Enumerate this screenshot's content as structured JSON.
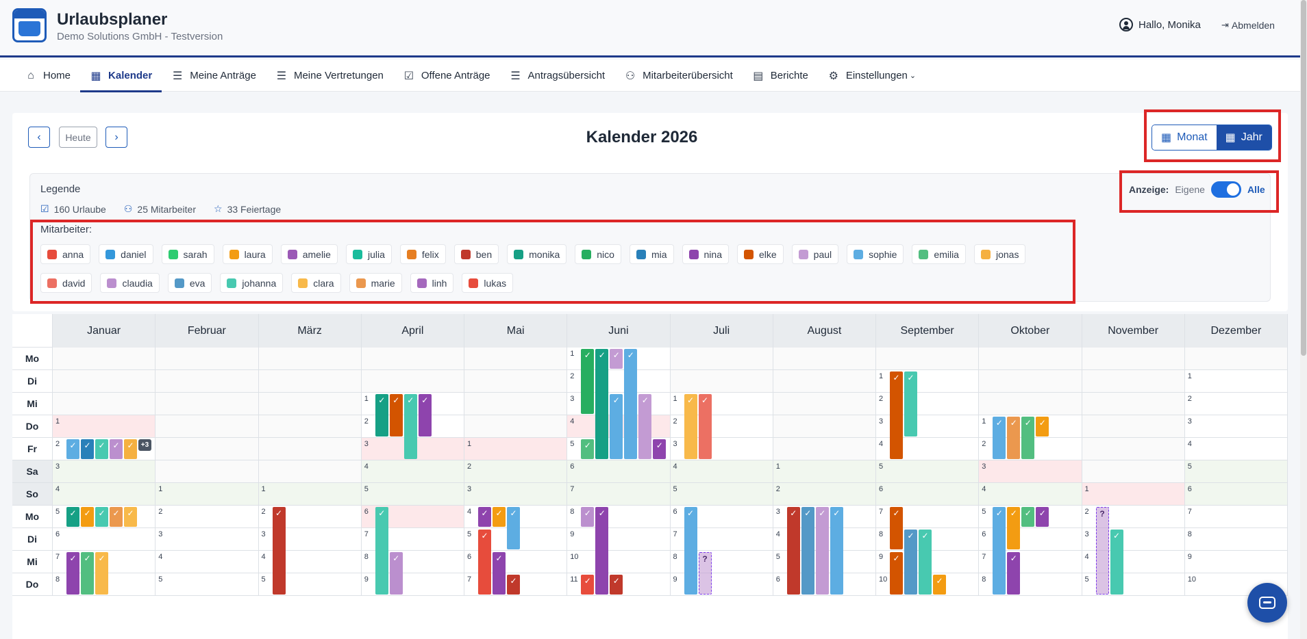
{
  "header": {
    "app_title": "Urlaubsplaner",
    "app_subtitle": "Demo Solutions GmbH - Testversion",
    "greeting": "Hallo, Monika",
    "logout_label": "Abmelden"
  },
  "nav": [
    {
      "label": "Home",
      "icon": "home-icon",
      "glyph": "⌂"
    },
    {
      "label": "Kalender",
      "icon": "calendar-icon",
      "glyph": "▦",
      "active": true
    },
    {
      "label": "Meine Anträge",
      "icon": "user-list-icon",
      "glyph": "☰"
    },
    {
      "label": "Meine Vertretungen",
      "icon": "user-swap-icon",
      "glyph": "☰"
    },
    {
      "label": "Offene Anträge",
      "icon": "clipboard-check-icon",
      "glyph": "☑"
    },
    {
      "label": "Antragsübersicht",
      "icon": "list-check-icon",
      "glyph": "☰"
    },
    {
      "label": "Mitarbeiterübersicht",
      "icon": "users-icon",
      "glyph": "⚇"
    },
    {
      "label": "Berichte",
      "icon": "excel-file-icon",
      "glyph": "▤"
    },
    {
      "label": "Einstellungen",
      "icon": "gear-icon",
      "glyph": "⚙",
      "dropdown": true
    }
  ],
  "toolbar": {
    "prev_label": "‹",
    "today_label": "Heute",
    "next_label": "›",
    "title": "Kalender 2026",
    "view_month": "Monat",
    "view_year": "Jahr"
  },
  "legend": {
    "title": "Legende",
    "stats": [
      {
        "icon": "calendar-check-icon",
        "glyph": "☑",
        "text": "160 Urlaube"
      },
      {
        "icon": "users-icon",
        "glyph": "⚇",
        "text": "25 Mitarbeiter"
      },
      {
        "icon": "star-icon",
        "glyph": "☆",
        "text": "33 Feiertage"
      }
    ],
    "display_label": "Anzeige:",
    "display_own": "Eigene",
    "display_all": "Alle",
    "employees_title": "Mitarbeiter:",
    "employees": [
      {
        "name": "anna",
        "color": "#e74c3c"
      },
      {
        "name": "daniel",
        "color": "#3498db"
      },
      {
        "name": "sarah",
        "color": "#2ecc71"
      },
      {
        "name": "laura",
        "color": "#f39c12"
      },
      {
        "name": "amelie",
        "color": "#9b59b6"
      },
      {
        "name": "julia",
        "color": "#1abc9c"
      },
      {
        "name": "felix",
        "color": "#e67e22"
      },
      {
        "name": "ben",
        "color": "#c0392b"
      },
      {
        "name": "monika",
        "color": "#16a085"
      },
      {
        "name": "nico",
        "color": "#27ae60"
      },
      {
        "name": "mia",
        "color": "#2980b9"
      },
      {
        "name": "nina",
        "color": "#8e44ad"
      },
      {
        "name": "elke",
        "color": "#d35400"
      },
      {
        "name": "paul",
        "color": "#c39bd3"
      },
      {
        "name": "sophie",
        "color": "#5dade2"
      },
      {
        "name": "emilia",
        "color": "#52be80"
      },
      {
        "name": "jonas",
        "color": "#f5b041"
      },
      {
        "name": "david",
        "color": "#ec7063"
      },
      {
        "name": "claudia",
        "color": "#bb8fce"
      },
      {
        "name": "eva",
        "color": "#5499c7"
      },
      {
        "name": "johanna",
        "color": "#48c9b0"
      },
      {
        "name": "clara",
        "color": "#f8b94a"
      },
      {
        "name": "marie",
        "color": "#eb984e"
      },
      {
        "name": "linh",
        "color": "#a569bd"
      },
      {
        "name": "lukas",
        "color": "#e74c3c"
      }
    ]
  },
  "calendar": {
    "months": [
      "Januar",
      "Februar",
      "März",
      "April",
      "Mai",
      "Juni",
      "Juli",
      "August",
      "September",
      "Oktober",
      "November",
      "Dezember"
    ],
    "weekdays": [
      "Mo",
      "Di",
      "Mi",
      "Do",
      "Fr",
      "Sa",
      "So",
      "Mo",
      "Di",
      "Mi",
      "Do"
    ],
    "first_weekday_index": [
      3,
      6,
      6,
      2,
      4,
      0,
      2,
      5,
      1,
      3,
      6,
      1
    ],
    "holidays": [
      {
        "month": 0,
        "day": 1
      },
      {
        "month": 3,
        "day": 3
      },
      {
        "month": 3,
        "day": 6
      },
      {
        "month": 4,
        "day": 1
      },
      {
        "month": 5,
        "day": 4
      },
      {
        "month": 9,
        "day": 3
      },
      {
        "month": 10,
        "day": 1
      }
    ],
    "more_badge": {
      "month": 0,
      "day": 2,
      "text": "+3"
    },
    "absences": [
      {
        "month": 0,
        "employee": "sophie",
        "start_row": 4,
        "end_row": 4
      },
      {
        "month": 0,
        "employee": "mia",
        "start_row": 4,
        "end_row": 4
      },
      {
        "month": 0,
        "employee": "johanna",
        "start_row": 4,
        "end_row": 4
      },
      {
        "month": 0,
        "employee": "claudia",
        "start_row": 4,
        "end_row": 4
      },
      {
        "month": 0,
        "employee": "jonas",
        "start_row": 4,
        "end_row": 4
      },
      {
        "month": 0,
        "employee": "monika",
        "start_row": 7,
        "end_row": 7
      },
      {
        "month": 0,
        "employee": "laura",
        "start_row": 7,
        "end_row": 7
      },
      {
        "month": 0,
        "employee": "johanna",
        "start_row": 7,
        "end_row": 7
      },
      {
        "month": 0,
        "employee": "marie",
        "start_row": 7,
        "end_row": 7
      },
      {
        "month": 0,
        "employee": "clara",
        "start_row": 7,
        "end_row": 7
      },
      {
        "month": 0,
        "employee": "nina",
        "start_row": 9,
        "end_row": 10
      },
      {
        "month": 0,
        "employee": "emilia",
        "start_row": 9,
        "end_row": 10
      },
      {
        "month": 0,
        "employee": "clara",
        "start_row": 9,
        "end_row": 10
      },
      {
        "month": 2,
        "employee": "ben",
        "start_row": 7,
        "end_row": 10
      },
      {
        "month": 3,
        "employee": "monika",
        "start_row": 2,
        "end_row": 3
      },
      {
        "month": 3,
        "employee": "elke",
        "start_row": 2,
        "end_row": 3
      },
      {
        "month": 3,
        "employee": "johanna",
        "start_row": 2,
        "end_row": 4
      },
      {
        "month": 3,
        "employee": "nina",
        "start_row": 2,
        "end_row": 3
      },
      {
        "month": 3,
        "employee": "johanna",
        "start_row": 7,
        "end_row": 10
      },
      {
        "month": 3,
        "employee": "claudia",
        "start_row": 9,
        "end_row": 10
      },
      {
        "month": 4,
        "employee": "nina",
        "start_row": 7,
        "end_row": 7
      },
      {
        "month": 4,
        "employee": "laura",
        "start_row": 7,
        "end_row": 7
      },
      {
        "month": 4,
        "employee": "sophie",
        "start_row": 7,
        "end_row": 8
      },
      {
        "month": 4,
        "employee": "anna",
        "start_row": 8,
        "end_row": 10
      },
      {
        "month": 4,
        "employee": "nina",
        "start_row": 9,
        "end_row": 10
      },
      {
        "month": 4,
        "employee": "ben",
        "start_row": 10,
        "end_row": 10
      },
      {
        "month": 5,
        "employee": "nico",
        "start_row": 0,
        "end_row": 2
      },
      {
        "month": 5,
        "employee": "monika",
        "start_row": 0,
        "end_row": 4
      },
      {
        "month": 5,
        "employee": "paul",
        "start_row": 0,
        "end_row": 0
      },
      {
        "month": 5,
        "employee": "sophie",
        "start_row": 0,
        "end_row": 4
      },
      {
        "month": 5,
        "employee": "sophie",
        "start_row": 2,
        "end_row": 4
      },
      {
        "month": 5,
        "employee": "paul",
        "start_row": 2,
        "end_row": 4
      },
      {
        "month": 5,
        "employee": "emilia",
        "start_row": 4,
        "end_row": 4
      },
      {
        "month": 5,
        "employee": "nina",
        "start_row": 4,
        "end_row": 4
      },
      {
        "month": 5,
        "employee": "claudia",
        "start_row": 7,
        "end_row": 7
      },
      {
        "month": 5,
        "employee": "nina",
        "start_row": 7,
        "end_row": 10
      },
      {
        "month": 5,
        "employee": "anna",
        "start_row": 10,
        "end_row": 10
      },
      {
        "month": 5,
        "employee": "ben",
        "start_row": 10,
        "end_row": 10
      },
      {
        "month": 6,
        "employee": "clara",
        "start_row": 2,
        "end_row": 4
      },
      {
        "month": 6,
        "employee": "ec7063",
        "start_row": 2,
        "end_row": 4
      },
      {
        "month": 6,
        "employee": "sophie",
        "start_row": 7,
        "end_row": 10
      },
      {
        "month": 6,
        "employee": "paul",
        "start_row": 9,
        "end_row": 10,
        "pending": true
      },
      {
        "month": 7,
        "employee": "ben",
        "start_row": 7,
        "end_row": 10
      },
      {
        "month": 7,
        "employee": "eva",
        "start_row": 7,
        "end_row": 10
      },
      {
        "month": 7,
        "employee": "paul",
        "start_row": 7,
        "end_row": 10
      },
      {
        "month": 7,
        "employee": "sophie",
        "start_row": 7,
        "end_row": 10
      },
      {
        "month": 8,
        "employee": "elke",
        "start_row": 1,
        "end_row": 4
      },
      {
        "month": 8,
        "employee": "johanna",
        "start_row": 1,
        "end_row": 3
      },
      {
        "month": 8,
        "employee": "elke",
        "start_row": 7,
        "end_row": 8
      },
      {
        "month": 8,
        "employee": "eva",
        "start_row": 8,
        "end_row": 10
      },
      {
        "month": 8,
        "employee": "johanna",
        "start_row": 8,
        "end_row": 10
      },
      {
        "month": 8,
        "employee": "elke",
        "start_row": 9,
        "end_row": 10
      },
      {
        "month": 8,
        "employee": "laura",
        "start_row": 10,
        "end_row": 10
      },
      {
        "month": 9,
        "employee": "sophie",
        "start_row": 3,
        "end_row": 4
      },
      {
        "month": 9,
        "employee": "marie",
        "start_row": 3,
        "end_row": 4
      },
      {
        "month": 9,
        "employee": "emilia",
        "start_row": 3,
        "end_row": 4
      },
      {
        "month": 9,
        "employee": "laura",
        "start_row": 3,
        "end_row": 3
      },
      {
        "month": 9,
        "employee": "sophie",
        "start_row": 7,
        "end_row": 10
      },
      {
        "month": 9,
        "employee": "laura",
        "start_row": 7,
        "end_row": 8
      },
      {
        "month": 9,
        "employee": "emilia",
        "start_row": 7,
        "end_row": 7
      },
      {
        "month": 9,
        "employee": "nina",
        "start_row": 7,
        "end_row": 7
      },
      {
        "month": 9,
        "employee": "nina",
        "start_row": 9,
        "end_row": 10
      },
      {
        "month": 10,
        "employee": "paul",
        "start_row": 7,
        "end_row": 10,
        "pending": true
      },
      {
        "month": 10,
        "employee": "johanna",
        "start_row": 8,
        "end_row": 10
      }
    ]
  }
}
